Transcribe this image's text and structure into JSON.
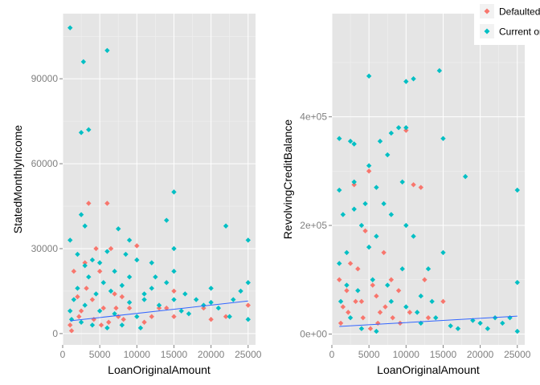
{
  "chart_data": [
    {
      "type": "scatter",
      "xlabel": "LoanOriginalAmount",
      "ylabel": "StatedMonthlyIncome",
      "xlim": [
        0,
        26000
      ],
      "ylim": [
        -4000,
        113000
      ],
      "x_ticks": [
        0,
        5000,
        10000,
        15000,
        20000,
        25000
      ],
      "x_tick_labels": [
        "0",
        "5000",
        "10000",
        "15000",
        "20000",
        "25000"
      ],
      "y_ticks": [
        0,
        30000,
        60000,
        90000
      ],
      "y_tick_labels": [
        "0",
        "30000",
        "60000",
        "90000"
      ],
      "grid": true,
      "trend_line": {
        "x": [
          1000,
          25000
        ],
        "y": [
          4500,
          11500
        ]
      },
      "series": [
        {
          "name": "Defaulted",
          "color": "#F8766D",
          "points": [
            [
              1000,
              3000
            ],
            [
              1500,
              22000
            ],
            [
              2000,
              13000
            ],
            [
              2500,
              8000
            ],
            [
              3000,
              25000
            ],
            [
              3500,
              46000
            ],
            [
              3200,
              16000
            ],
            [
              4000,
              12000
            ],
            [
              4500,
              30000
            ],
            [
              5000,
              22000
            ],
            [
              5500,
              9000
            ],
            [
              6000,
              46000
            ],
            [
              6500,
              30000
            ],
            [
              7000,
              14000
            ],
            [
              7500,
              6000
            ],
            [
              8000,
              13000
            ],
            [
              9000,
              9000
            ],
            [
              10000,
              31000
            ],
            [
              11000,
              4000
            ],
            [
              12000,
              6000
            ],
            [
              13000,
              9000
            ],
            [
              14000,
              9000
            ],
            [
              15000,
              6000
            ],
            [
              19000,
              9000
            ],
            [
              20000,
              5000
            ],
            [
              22000,
              6000
            ],
            [
              25000,
              10000
            ],
            [
              1200,
              1000
            ],
            [
              2200,
              6000
            ],
            [
              4200,
              5000
            ],
            [
              5200,
              3000
            ],
            [
              6200,
              4000
            ],
            [
              7200,
              9000
            ],
            [
              8200,
              5000
            ],
            [
              15000,
              15000
            ]
          ]
        },
        {
          "name": "Current or Paid",
          "color": "#00BFC4",
          "points": [
            [
              1000,
              108000
            ],
            [
              1000,
              33000
            ],
            [
              2500,
              71000
            ],
            [
              2800,
              96000
            ],
            [
              3500,
              72000
            ],
            [
              6000,
              100000
            ],
            [
              2500,
              42000
            ],
            [
              3000,
              38000
            ],
            [
              6000,
              29000
            ],
            [
              4000,
              26000
            ],
            [
              5000,
              25000
            ],
            [
              7500,
              37000
            ],
            [
              9000,
              33000
            ],
            [
              10000,
              26000
            ],
            [
              12000,
              25000
            ],
            [
              14000,
              40000
            ],
            [
              15000,
              50000
            ],
            [
              15000,
              22000
            ],
            [
              22000,
              38000
            ],
            [
              25000,
              33000
            ],
            [
              25000,
              18000
            ],
            [
              20000,
              16000
            ],
            [
              18000,
              12000
            ],
            [
              16000,
              8000
            ],
            [
              12000,
              16000
            ],
            [
              11000,
              12000
            ],
            [
              9000,
              20000
            ],
            [
              8000,
              17000
            ],
            [
              7000,
              22000
            ],
            [
              6500,
              15000
            ],
            [
              5500,
              18000
            ],
            [
              4500,
              14000
            ],
            [
              3500,
              20000
            ],
            [
              2000,
              16000
            ],
            [
              1500,
              12000
            ],
            [
              1000,
              8000
            ],
            [
              1200,
              5000
            ],
            [
              2500,
              4000
            ],
            [
              4000,
              3000
            ],
            [
              6000,
              2000
            ],
            [
              8000,
              3000
            ],
            [
              10000,
              6000
            ],
            [
              13000,
              10000
            ],
            [
              15000,
              12000
            ],
            [
              17000,
              7000
            ],
            [
              19000,
              10000
            ],
            [
              21000,
              9000
            ],
            [
              23000,
              12000
            ],
            [
              24000,
              15000
            ],
            [
              25000,
              5000
            ],
            [
              3000,
              10000
            ],
            [
              5000,
              8000
            ],
            [
              7000,
              7000
            ],
            [
              9000,
              11000
            ],
            [
              11000,
              14000
            ],
            [
              14000,
              18000
            ],
            [
              15000,
              30000
            ],
            [
              12500,
              20000
            ],
            [
              10500,
              2000
            ],
            [
              20000,
              11000
            ],
            [
              22500,
              6000
            ],
            [
              16500,
              14000
            ],
            [
              2000,
              28000
            ],
            [
              3000,
              24000
            ],
            [
              8500,
              28000
            ]
          ]
        }
      ]
    },
    {
      "type": "scatter",
      "xlabel": "LoanOriginalAmount",
      "ylabel": "RevolvingCreditBalance",
      "xlim": [
        0,
        26000
      ],
      "ylim": [
        -20000,
        590000
      ],
      "x_ticks": [
        0,
        5000,
        10000,
        15000,
        20000,
        25000
      ],
      "x_tick_labels": [
        "0",
        "5000",
        "10000",
        "15000",
        "20000",
        "25000"
      ],
      "y_ticks": [
        0,
        200000,
        400000
      ],
      "y_tick_labels": [
        "0e+00",
        "2e+05",
        "4e+05"
      ],
      "grid": true,
      "trend_line": {
        "x": [
          1000,
          25000
        ],
        "y": [
          14000,
          33000
        ]
      },
      "series": [
        {
          "name": "Defaulted",
          "color": "#F8766D",
          "points": [
            [
              1000,
              100000
            ],
            [
              1500,
              50000
            ],
            [
              2000,
              80000
            ],
            [
              2500,
              130000
            ],
            [
              3000,
              275000
            ],
            [
              3500,
              120000
            ],
            [
              4000,
              60000
            ],
            [
              4500,
              190000
            ],
            [
              5000,
              300000
            ],
            [
              5500,
              90000
            ],
            [
              6000,
              70000
            ],
            [
              6500,
              40000
            ],
            [
              7000,
              150000
            ],
            [
              8000,
              100000
            ],
            [
              9000,
              80000
            ],
            [
              10000,
              375000
            ],
            [
              10500,
              40000
            ],
            [
              11000,
              275000
            ],
            [
              12000,
              270000
            ],
            [
              12500,
              100000
            ],
            [
              13000,
              30000
            ],
            [
              15000,
              60000
            ],
            [
              1200,
              20000
            ],
            [
              2200,
              40000
            ],
            [
              3200,
              60000
            ],
            [
              4200,
              30000
            ],
            [
              5200,
              10000
            ],
            [
              6200,
              20000
            ],
            [
              7200,
              50000
            ],
            [
              8200,
              30000
            ],
            [
              9200,
              20000
            ]
          ]
        },
        {
          "name": "Current or Paid",
          "color": "#00BFC4",
          "points": [
            [
              1000,
              360000
            ],
            [
              2500,
              355000
            ],
            [
              3000,
              350000
            ],
            [
              4500,
              240000
            ],
            [
              5000,
              475000
            ],
            [
              5000,
              310000
            ],
            [
              6500,
              355000
            ],
            [
              7500,
              330000
            ],
            [
              8000,
              370000
            ],
            [
              9000,
              380000
            ],
            [
              10000,
              465000
            ],
            [
              11000,
              470000
            ],
            [
              10000,
              380000
            ],
            [
              14500,
              485000
            ],
            [
              15000,
              360000
            ],
            [
              9500,
              280000
            ],
            [
              6000,
              270000
            ],
            [
              3000,
              280000
            ],
            [
              1000,
              265000
            ],
            [
              18000,
              290000
            ],
            [
              25000,
              265000
            ],
            [
              25000,
              95000
            ],
            [
              22000,
              30000
            ],
            [
              20000,
              20000
            ],
            [
              17000,
              10000
            ],
            [
              15000,
              150000
            ],
            [
              13000,
              120000
            ],
            [
              12000,
              70000
            ],
            [
              11000,
              180000
            ],
            [
              10000,
              200000
            ],
            [
              8000,
              220000
            ],
            [
              7000,
              240000
            ],
            [
              6000,
              180000
            ],
            [
              5000,
              160000
            ],
            [
              4000,
              200000
            ],
            [
              3000,
              230000
            ],
            [
              2000,
              150000
            ],
            [
              1500,
              220000
            ],
            [
              1000,
              130000
            ],
            [
              1200,
              60000
            ],
            [
              2500,
              30000
            ],
            [
              4000,
              10000
            ],
            [
              6000,
              5000
            ],
            [
              8000,
              60000
            ],
            [
              10000,
              50000
            ],
            [
              12000,
              20000
            ],
            [
              14000,
              30000
            ],
            [
              16000,
              15000
            ],
            [
              19000,
              25000
            ],
            [
              21000,
              10000
            ],
            [
              23000,
              20000
            ],
            [
              24000,
              30000
            ],
            [
              25000,
              5000
            ],
            [
              3500,
              80000
            ],
            [
              5500,
              100000
            ],
            [
              7500,
              90000
            ],
            [
              9500,
              120000
            ],
            [
              11500,
              40000
            ],
            [
              13500,
              60000
            ],
            [
              2000,
              90000
            ]
          ]
        }
      ]
    }
  ],
  "legend": {
    "placement": "top-right",
    "items": [
      {
        "label": "Defaulted",
        "color": "#F8766D"
      },
      {
        "label": "Current or Paid",
        "color": "#00BFC4"
      }
    ]
  }
}
